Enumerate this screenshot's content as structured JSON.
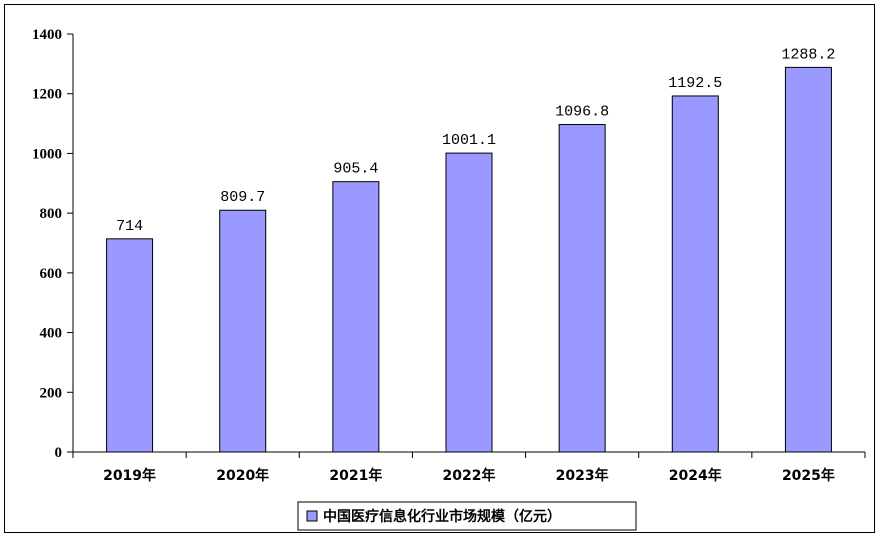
{
  "chart_data": {
    "type": "bar",
    "categories": [
      "2019年",
      "2020年",
      "2021年",
      "2022年",
      "2023年",
      "2024年",
      "2025年"
    ],
    "series": [
      {
        "name": "中国医疗信息化行业市场规模（亿元）",
        "values": [
          714,
          809.7,
          905.4,
          1001.1,
          1096.8,
          1192.5,
          1288.2
        ],
        "value_labels": [
          "714",
          "809.7",
          "905.4",
          "1001.1",
          "1096.8",
          "1192.5",
          "1288.2"
        ]
      }
    ],
    "ylim": [
      0,
      1400
    ],
    "yticks": [
      0,
      200,
      400,
      600,
      800,
      1000,
      1200,
      1400
    ],
    "grid": false,
    "legend_position": "bottom",
    "colors": {
      "bar_fill": "#9999FF",
      "bar_stroke": "#000000"
    }
  }
}
